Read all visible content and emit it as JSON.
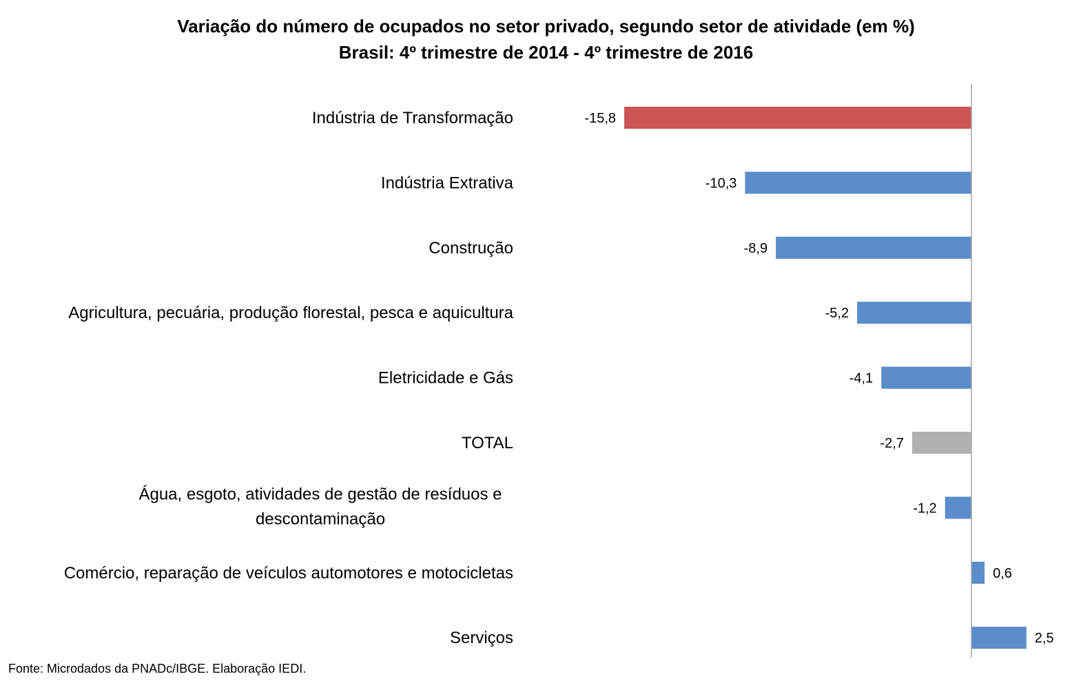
{
  "title_line1": "Variação do número de ocupados no setor privado, segundo setor de atividade (em %)",
  "title_line2": "Brasil: 4º trimestre de 2014 - 4º trimestre de 2016",
  "source": "Fonte: Microdados da PNADc/IBGE. Elaboração IEDI.",
  "colors": {
    "highlight": "#CD5555",
    "default": "#5B8CCB",
    "total": "#B0B0B0",
    "axis": "#A6A6A6"
  },
  "chart_data": {
    "type": "bar",
    "orientation": "horizontal",
    "title": "Variação do número de ocupados no setor privado, segundo setor de atividade (em %)",
    "subtitle": "Brasil: 4º trimestre de 2014 - 4º trimestre de 2016",
    "xlabel": "",
    "ylabel": "",
    "grid": false,
    "xlim": [
      -16,
      3
    ],
    "categories": [
      "Indústria de Transformação",
      "Indústria Extrativa",
      "Construção",
      "Agricultura, pecuária, produção florestal, pesca e aquicultura",
      "Eletricidade e Gás",
      "TOTAL",
      "Água, esgoto, atividades de gestão de resíduos e descontaminação",
      "Comércio, reparação de veículos automotores e motocicletas",
      "Serviços"
    ],
    "category_lines": [
      [
        "Indústria de Transformação"
      ],
      [
        "Indústria Extrativa"
      ],
      [
        "Construção"
      ],
      [
        "Agricultura, pecuária, produção florestal, pesca e aquicultura"
      ],
      [
        "Eletricidade e Gás"
      ],
      [
        "TOTAL"
      ],
      [
        "Água, esgoto, atividades de gestão de resíduos e",
        "descontaminação"
      ],
      [
        "Comércio, reparação de veículos automotores e motocicletas"
      ],
      [
        "Serviços"
      ]
    ],
    "values": [
      -15.8,
      -10.3,
      -8.9,
      -5.2,
      -4.1,
      -2.7,
      -1.2,
      0.6,
      2.5
    ],
    "value_labels": [
      "-15,8",
      "-10,3",
      "-8,9",
      "-5,2",
      "-4,1",
      "-2,7",
      "-1,2",
      "0,6",
      "2,5"
    ],
    "bar_colors": [
      "highlight",
      "default",
      "default",
      "default",
      "default",
      "total",
      "default",
      "default",
      "default"
    ]
  }
}
